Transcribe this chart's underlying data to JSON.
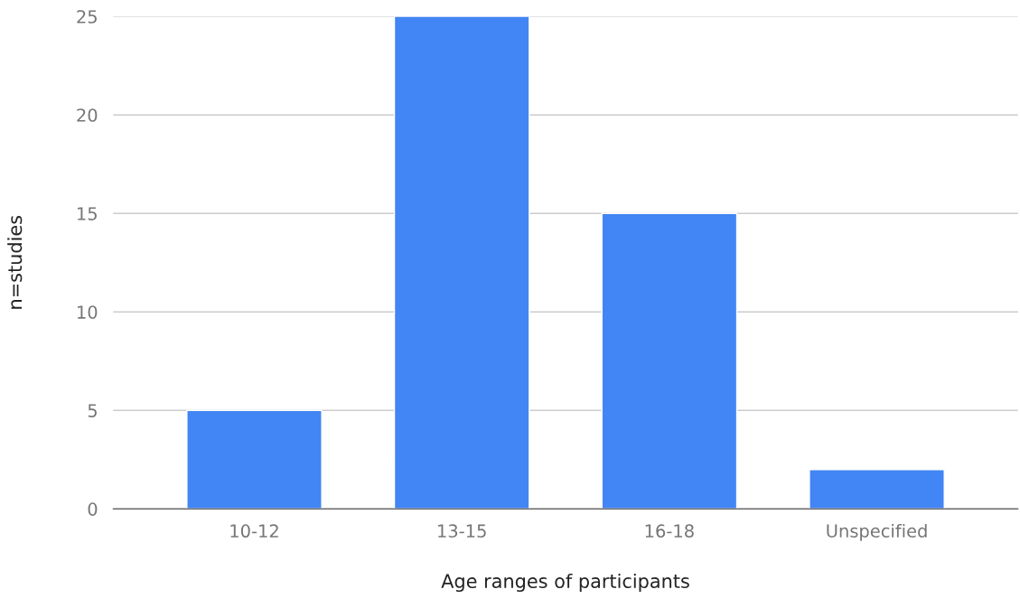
{
  "chart_data": {
    "type": "bar",
    "xlabel": "Age ranges of participants",
    "ylabel": "n=studies",
    "categories": [
      "10-12",
      "13-15",
      "16-18",
      "Unspecified"
    ],
    "values": [
      5,
      25,
      15,
      2
    ],
    "color": "#4285f4",
    "ylim": [
      0,
      25
    ],
    "yticks": [
      0,
      5,
      10,
      15,
      20,
      25
    ],
    "grid": "y"
  }
}
